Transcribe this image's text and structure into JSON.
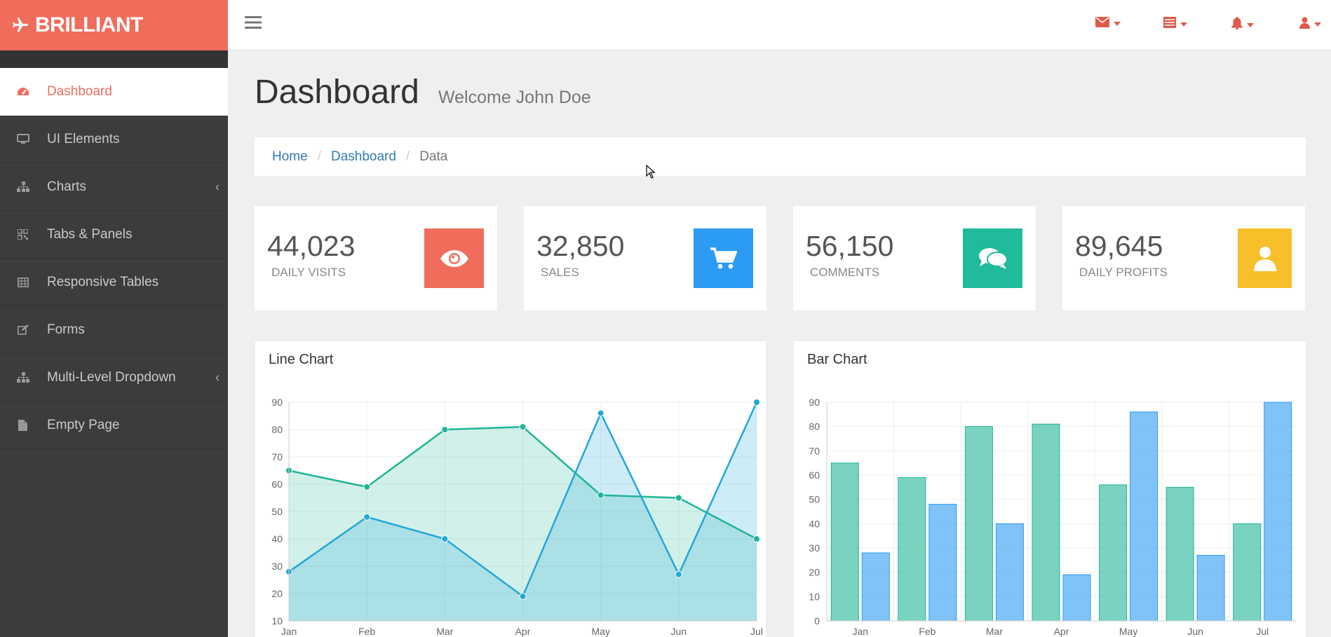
{
  "brand": {
    "name": "BRILLIANT"
  },
  "sidebar": {
    "items": [
      {
        "label": "Dashboard",
        "icon": "dashboard-icon",
        "active": true
      },
      {
        "label": "UI Elements",
        "icon": "desktop-icon"
      },
      {
        "label": "Charts",
        "icon": "sitemap-icon",
        "has_submenu": true
      },
      {
        "label": "Tabs & Panels",
        "icon": "qrcode-icon"
      },
      {
        "label": "Responsive Tables",
        "icon": "table-icon"
      },
      {
        "label": "Forms",
        "icon": "edit-icon"
      },
      {
        "label": "Multi-Level Dropdown",
        "icon": "sitemap-icon",
        "has_submenu": true
      },
      {
        "label": "Empty Page",
        "icon": "file-icon"
      }
    ]
  },
  "topbar": {
    "icons": [
      "envelope-icon",
      "tasks-icon",
      "bell-icon",
      "user-icon"
    ]
  },
  "header": {
    "title": "Dashboard",
    "subtitle": "Welcome John Doe"
  },
  "breadcrumb": {
    "items": [
      "Home",
      "Dashboard",
      "Data"
    ]
  },
  "stats": [
    {
      "value": "44,023",
      "label": "DAILY VISITS",
      "icon": "eye-icon",
      "color": "#f06d5c"
    },
    {
      "value": "32,850",
      "label": "SALES",
      "icon": "shopping-cart-icon",
      "color": "#2b9bf4"
    },
    {
      "value": "56,150",
      "label": "COMMENTS",
      "icon": "comments-icon",
      "color": "#1fbb9b"
    },
    {
      "value": "89,645",
      "label": "DAILY PROFITS",
      "icon": "user-icon",
      "color": "#f7bf2a"
    }
  ],
  "panels": {
    "line_title": "Line Chart",
    "bar_title": "Bar Chart"
  },
  "chart_data": [
    {
      "type": "area",
      "title": "Line Chart",
      "categories": [
        "Jan",
        "Feb",
        "Mar",
        "Apr",
        "May",
        "Jun",
        "Jul"
      ],
      "ylim": [
        10,
        90
      ],
      "yticks": [
        10,
        20,
        30,
        40,
        50,
        60,
        70,
        80,
        90
      ],
      "grid": true,
      "series": [
        {
          "values": [
            65,
            59,
            80,
            81,
            56,
            55,
            40
          ],
          "color": "#1fb596"
        },
        {
          "values": [
            28,
            48,
            40,
            19,
            86,
            27,
            90
          ],
          "color": "#22a7d9"
        }
      ]
    },
    {
      "type": "bar",
      "title": "Bar Chart",
      "categories": [
        "Jan",
        "Feb",
        "Mar",
        "Apr",
        "May",
        "Jun",
        "Jul"
      ],
      "ylim": [
        0,
        90
      ],
      "yticks": [
        0,
        10,
        20,
        30,
        40,
        50,
        60,
        70,
        80,
        90
      ],
      "grid": true,
      "series": [
        {
          "values": [
            65,
            59,
            80,
            81,
            56,
            55,
            40
          ],
          "color": "#1fb596"
        },
        {
          "values": [
            28,
            48,
            40,
            19,
            86,
            27,
            90
          ],
          "color": "#2b9bf4"
        }
      ]
    }
  ]
}
